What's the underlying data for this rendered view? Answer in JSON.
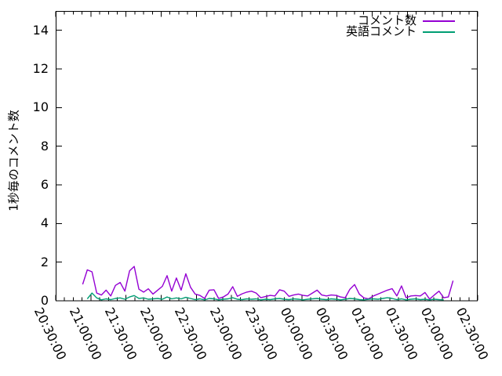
{
  "chart_data": {
    "type": "line",
    "title": "",
    "ylabel": "1秒毎のコメント数",
    "xlabel": "",
    "ylim": [
      0,
      15
    ],
    "y_ticks": [
      0,
      2,
      4,
      6,
      8,
      10,
      12,
      14
    ],
    "grid": false,
    "x_axis": {
      "unit": "time (hh:mm:ss), minutes measured after 20:30:00",
      "tick_interval_minutes": 30,
      "minor_ticks_per_interval": 3,
      "tick_labels": [
        "20:30:00",
        "21:00:00",
        "21:30:00",
        "22:00:00",
        "22:30:00",
        "23:00:00",
        "23:30:00",
        "00:00:00",
        "00:30:00",
        "01:00:00",
        "01:30:00",
        "02:00:00",
        "02:30:00"
      ]
    },
    "legend": {
      "position": "top-right-inside",
      "entries": [
        "コメント数",
        "英語コメント"
      ]
    },
    "series": [
      {
        "name": "コメント数",
        "color": "#9400d3",
        "points": [
          [
            23,
            0.85
          ],
          [
            27,
            1.6
          ],
          [
            31,
            1.5
          ],
          [
            35,
            0.4
          ],
          [
            39,
            0.3
          ],
          [
            43,
            0.55
          ],
          [
            47,
            0.25
          ],
          [
            51,
            0.8
          ],
          [
            55,
            0.95
          ],
          [
            59,
            0.5
          ],
          [
            63,
            1.55
          ],
          [
            67,
            1.78
          ],
          [
            71,
            0.6
          ],
          [
            75,
            0.45
          ],
          [
            79,
            0.62
          ],
          [
            83,
            0.35
          ],
          [
            87,
            0.55
          ],
          [
            91,
            0.75
          ],
          [
            95,
            1.3
          ],
          [
            99,
            0.5
          ],
          [
            103,
            1.18
          ],
          [
            107,
            0.55
          ],
          [
            111,
            1.4
          ],
          [
            115,
            0.7
          ],
          [
            119,
            0.35
          ],
          [
            123,
            0.28
          ],
          [
            127,
            0.12
          ],
          [
            131,
            0.55
          ],
          [
            135,
            0.57
          ],
          [
            139,
            0.12
          ],
          [
            143,
            0.2
          ],
          [
            147,
            0.35
          ],
          [
            151,
            0.73
          ],
          [
            155,
            0.23
          ],
          [
            159,
            0.36
          ],
          [
            163,
            0.45
          ],
          [
            167,
            0.5
          ],
          [
            171,
            0.4
          ],
          [
            175,
            0.16
          ],
          [
            179,
            0.22
          ],
          [
            183,
            0.28
          ],
          [
            187,
            0.25
          ],
          [
            191,
            0.57
          ],
          [
            195,
            0.5
          ],
          [
            199,
            0.23
          ],
          [
            203,
            0.3
          ],
          [
            207,
            0.35
          ],
          [
            211,
            0.28
          ],
          [
            215,
            0.25
          ],
          [
            219,
            0.4
          ],
          [
            223,
            0.55
          ],
          [
            227,
            0.3
          ],
          [
            231,
            0.25
          ],
          [
            235,
            0.3
          ],
          [
            239,
            0.28
          ],
          [
            243,
            0.2
          ],
          [
            247,
            0.16
          ],
          [
            251,
            0.6
          ],
          [
            255,
            0.84
          ],
          [
            259,
            0.35
          ],
          [
            263,
            0.15
          ],
          [
            267,
            0.1
          ],
          [
            271,
            0.25
          ],
          [
            275,
            0.35
          ],
          [
            279,
            0.45
          ],
          [
            283,
            0.55
          ],
          [
            287,
            0.63
          ],
          [
            291,
            0.25
          ],
          [
            295,
            0.77
          ],
          [
            299,
            0.16
          ],
          [
            303,
            0.25
          ],
          [
            307,
            0.27
          ],
          [
            311,
            0.25
          ],
          [
            315,
            0.43
          ],
          [
            319,
            0.09
          ],
          [
            323,
            0.3
          ],
          [
            327,
            0.5
          ],
          [
            331,
            0.16
          ],
          [
            335,
            0.2
          ],
          [
            339,
            1.04
          ]
        ]
      },
      {
        "name": "英語コメント",
        "color": "#009e73",
        "points": [
          [
            27,
            0.1
          ],
          [
            31,
            0.4
          ],
          [
            35,
            0.15
          ],
          [
            39,
            0.05
          ],
          [
            43,
            0.1
          ],
          [
            47,
            0.06
          ],
          [
            51,
            0.12
          ],
          [
            55,
            0.15
          ],
          [
            59,
            0.08
          ],
          [
            63,
            0.2
          ],
          [
            67,
            0.27
          ],
          [
            71,
            0.12
          ],
          [
            75,
            0.15
          ],
          [
            79,
            0.08
          ],
          [
            83,
            0.1
          ],
          [
            87,
            0.12
          ],
          [
            91,
            0.08
          ],
          [
            95,
            0.2
          ],
          [
            99,
            0.1
          ],
          [
            103,
            0.15
          ],
          [
            107,
            0.1
          ],
          [
            111,
            0.18
          ],
          [
            115,
            0.12
          ],
          [
            119,
            0.06
          ],
          [
            123,
            0.1
          ],
          [
            127,
            0.05
          ],
          [
            131,
            0.12
          ],
          [
            135,
            0.1
          ],
          [
            139,
            0.05
          ],
          [
            143,
            0.08
          ],
          [
            147,
            0.1
          ],
          [
            151,
            0.16
          ],
          [
            155,
            0.08
          ],
          [
            159,
            0.06
          ],
          [
            163,
            0.1
          ],
          [
            167,
            0.08
          ],
          [
            171,
            0.1
          ],
          [
            175,
            0.05
          ],
          [
            179,
            0.08
          ],
          [
            183,
            0.06
          ],
          [
            187,
            0.1
          ],
          [
            191,
            0.12
          ],
          [
            195,
            0.08
          ],
          [
            199,
            0.06
          ],
          [
            203,
            0.1
          ],
          [
            207,
            0.08
          ],
          [
            211,
            0.05
          ],
          [
            215,
            0.08
          ],
          [
            219,
            0.1
          ],
          [
            223,
            0.12
          ],
          [
            227,
            0.08
          ],
          [
            231,
            0.06
          ],
          [
            235,
            0.1
          ],
          [
            239,
            0.08
          ],
          [
            243,
            0.05
          ],
          [
            247,
            0.08
          ],
          [
            251,
            0.12
          ],
          [
            255,
            0.1
          ],
          [
            259,
            0.06
          ],
          [
            263,
            0.05
          ],
          [
            267,
            0.08
          ],
          [
            271,
            0.1
          ],
          [
            275,
            0.08
          ],
          [
            279,
            0.12
          ],
          [
            283,
            0.16
          ],
          [
            287,
            0.12
          ],
          [
            291,
            0.06
          ],
          [
            295,
            0.1
          ],
          [
            299,
            0.05
          ],
          [
            303,
            0.08
          ],
          [
            307,
            0.1
          ],
          [
            311,
            0.06
          ],
          [
            315,
            0.08
          ],
          [
            319,
            0.05
          ],
          [
            323,
            0.08
          ],
          [
            327,
            0.06
          ],
          [
            331,
            0.05
          ]
        ]
      }
    ]
  }
}
